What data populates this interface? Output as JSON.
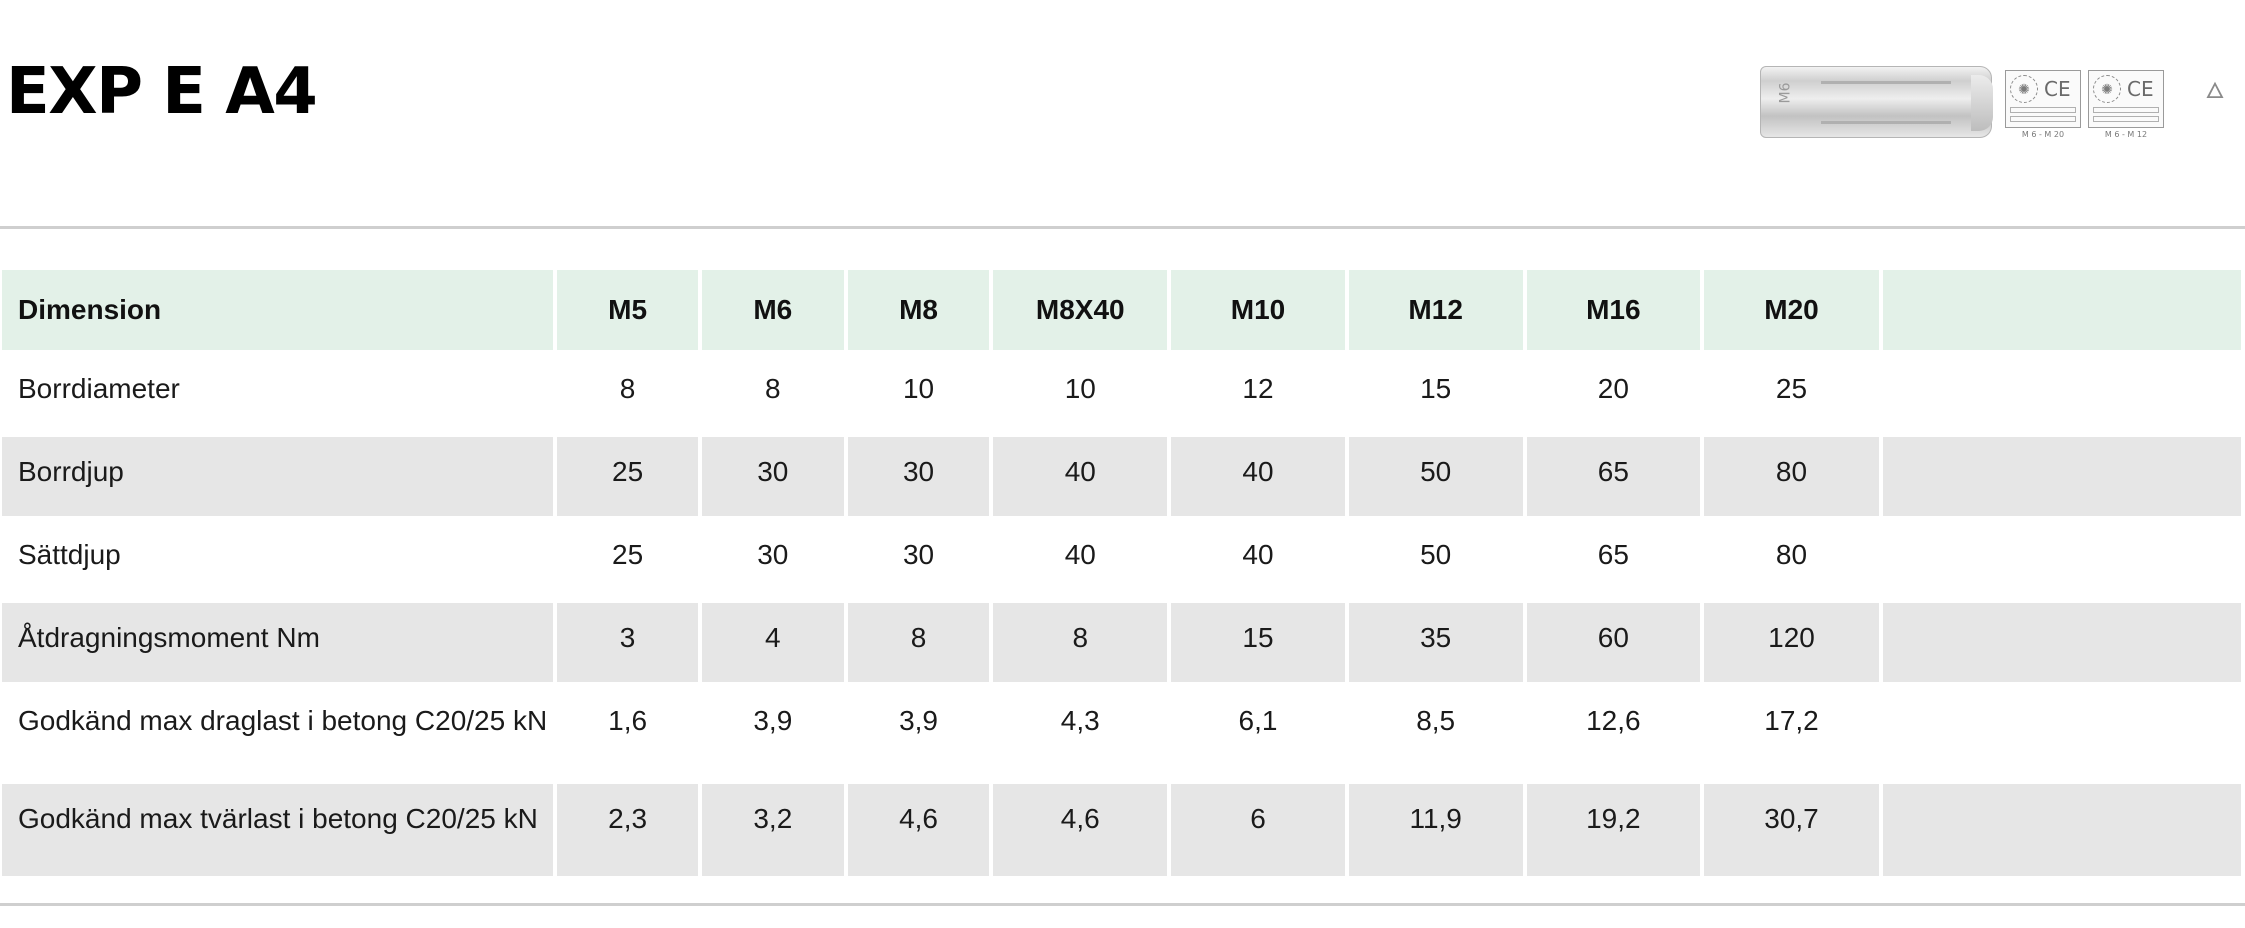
{
  "header": {
    "title": "EXP E A4"
  },
  "badges": {
    "product_mark": "M6",
    "cert1_label": "M 6 - M 20",
    "cert2_label": "M 6 - M 12",
    "ce_mark": "CE"
  },
  "table": {
    "header_label": "Dimension",
    "columns": [
      "M5",
      "M6",
      "M8",
      "M8X40",
      "M10",
      "M12",
      "M16",
      "M20",
      ""
    ],
    "rows": [
      {
        "label": "Borrdiameter",
        "values": [
          "8",
          "8",
          "10",
          "10",
          "12",
          "15",
          "20",
          "25",
          ""
        ]
      },
      {
        "label": "Borrdjup",
        "values": [
          "25",
          "30",
          "30",
          "40",
          "40",
          "50",
          "65",
          "80",
          ""
        ]
      },
      {
        "label": "Sättdjup",
        "values": [
          "25",
          "30",
          "30",
          "40",
          "40",
          "50",
          "65",
          "80",
          ""
        ]
      },
      {
        "label": "Åtdragningsmoment Nm",
        "values": [
          "3",
          "4",
          "8",
          "8",
          "15",
          "35",
          "60",
          "120",
          ""
        ]
      },
      {
        "label": "Godkänd max draglast i betong C20/25 kN",
        "values": [
          "1,6",
          "3,9",
          "3,9",
          "4,3",
          "6,1",
          "8,5",
          "12,6",
          "17,2",
          ""
        ]
      },
      {
        "label": "Godkänd max tvärlast i betong C20/25  kN",
        "values": [
          "2,3",
          "3,2",
          "4,6",
          "4,6",
          "6",
          "11,9",
          "19,2",
          "30,7",
          ""
        ]
      }
    ]
  }
}
